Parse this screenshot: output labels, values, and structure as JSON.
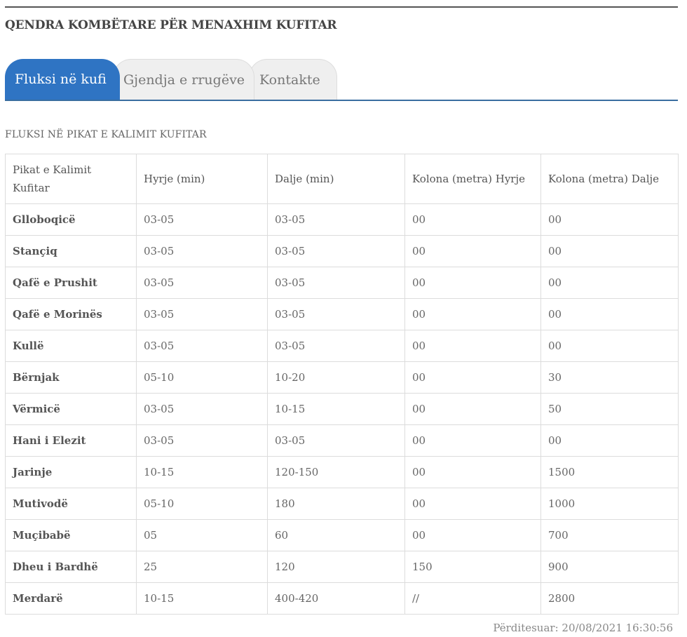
{
  "site": {
    "title": "QENDRA KOMBËTARE PËR MENAXHIM KUFITAR"
  },
  "tabs": [
    {
      "label": "Fluksi në kufi",
      "active": true
    },
    {
      "label": "Gjendja e rrugëve",
      "active": false
    },
    {
      "label": "Kontakte",
      "active": false
    }
  ],
  "section": {
    "title": "FLUKSI NË PIKAT E KALIMIT KUFITAR"
  },
  "table": {
    "headers": [
      "Pikat e Kalimit Kufitar",
      "Hyrje (min)",
      "Dalje (min)",
      "Kolona (metra) Hyrje",
      "Kolona (metra) Dalje"
    ],
    "rows": [
      [
        "Glloboqicë",
        "03-05",
        "03-05",
        "00",
        "00"
      ],
      [
        "Stançiq",
        "03-05",
        "03-05",
        "00",
        "00"
      ],
      [
        "Qafë e Prushit",
        "03-05",
        "03-05",
        "00",
        "00"
      ],
      [
        "Qafë e Morinës",
        "03-05",
        "03-05",
        "00",
        "00"
      ],
      [
        "Kullë",
        "03-05",
        "03-05",
        "00",
        "00"
      ],
      [
        "Bërnjak",
        "05-10",
        "10-20",
        "00",
        "30"
      ],
      [
        "Vërmicë",
        "03-05",
        "10-15",
        "00",
        "50"
      ],
      [
        "Hani i Elezit",
        "03-05",
        "03-05",
        "00",
        "00"
      ],
      [
        "Jarinje",
        "10-15",
        "120-150",
        "00",
        "1500"
      ],
      [
        "Mutivodë",
        "05-10",
        "180",
        "00",
        "1000"
      ],
      [
        "Muçibabë",
        "05",
        "60",
        "00",
        "700"
      ],
      [
        "Dheu i Bardhë",
        "25",
        "120",
        "150",
        "900"
      ],
      [
        "Merdarë",
        "10-15",
        "400-420",
        "//",
        "2800"
      ]
    ]
  },
  "footer": {
    "updated": "Përditesuar: 20/08/2021 16:30:56"
  },
  "colors": {
    "accent": "#2f74c3",
    "tab_inactive": "#efefef",
    "border": "#dcdcdc"
  }
}
